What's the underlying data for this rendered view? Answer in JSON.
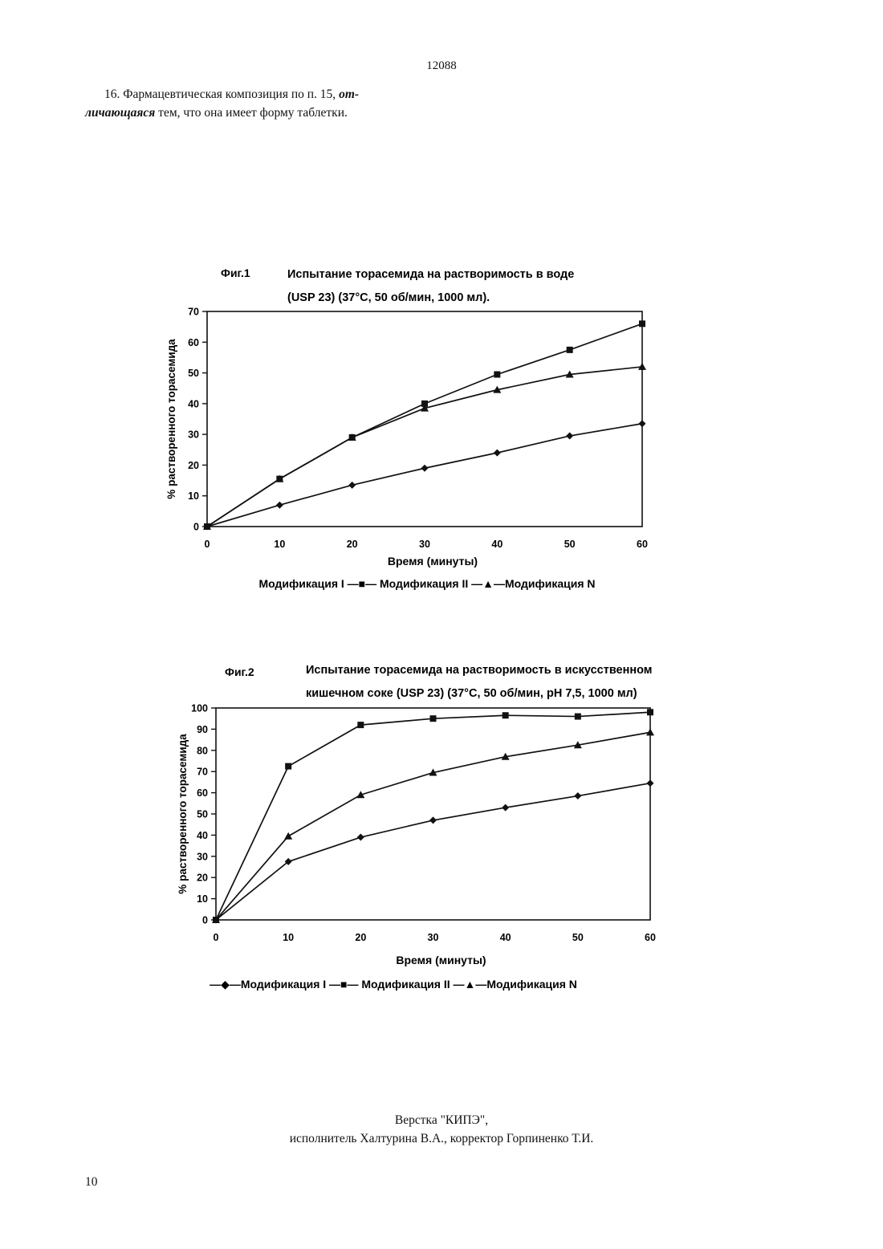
{
  "document": {
    "number": "12088",
    "claim": {
      "lead": "16. Фармацевтическая композиция по п. 15,",
      "emph1": "от-",
      "emph2": "личающаяся",
      "tail": "тем, что она имеет форму таблетки."
    },
    "footer": {
      "line1": "Верстка \"КИПЭ\",",
      "line2": "исполнитель Халтурина В.А., корректор Горпиненко Т.И."
    },
    "page_number": "10"
  },
  "chart_data": [
    {
      "type": "line",
      "fig_label": "Фиг.1",
      "title": "Испытание торасемида на растворимость в воде",
      "subtitle": "(USP 23) (37°C, 50 об/мин, 1000 мл).",
      "xlabel": "Время (минуты)",
      "ylabel": "% растворенного торасемида",
      "x": [
        0,
        10,
        20,
        30,
        40,
        50,
        60
      ],
      "xlim": [
        0,
        60
      ],
      "ylim": [
        0,
        70
      ],
      "yticks": [
        0,
        10,
        20,
        30,
        40,
        50,
        60,
        70
      ],
      "grid": false,
      "legend_position": "bottom",
      "series": [
        {
          "name": "Модификация I",
          "marker": "diamond",
          "values": [
            0,
            7,
            13.5,
            19,
            24,
            29.5,
            33.5
          ]
        },
        {
          "name": "Модификация II",
          "marker": "square",
          "values": [
            0,
            15.5,
            29,
            40,
            49.5,
            57.5,
            66
          ]
        },
        {
          "name": "Модификация N",
          "marker": "triangle",
          "values": [
            0,
            15.5,
            29,
            38.5,
            44.5,
            49.5,
            52
          ]
        }
      ],
      "legend_text": "Модификация I  —■— Модификация II —▲—Модификация N"
    },
    {
      "type": "line",
      "fig_label": "Фиг.2",
      "title": "Испытание торасемида на растворимость в искусственном",
      "subtitle": "кишечном соке (USP 23) (37°C, 50 об/мин, pH 7,5, 1000 мл)",
      "xlabel": "Время (минуты)",
      "ylabel": "% растворенного торасемида",
      "x": [
        0,
        10,
        20,
        30,
        40,
        50,
        60
      ],
      "xlim": [
        0,
        60
      ],
      "ylim": [
        0,
        100
      ],
      "yticks": [
        0,
        10,
        20,
        30,
        40,
        50,
        60,
        70,
        80,
        90,
        100
      ],
      "grid": false,
      "legend_position": "bottom",
      "series": [
        {
          "name": "Модификация I",
          "marker": "diamond",
          "values": [
            0,
            27.5,
            39,
            47,
            53,
            58.5,
            64.5
          ]
        },
        {
          "name": "Модификация II",
          "marker": "square",
          "values": [
            0,
            72.5,
            92,
            95,
            96.5,
            96,
            98
          ]
        },
        {
          "name": "Модификация N",
          "marker": "triangle",
          "values": [
            0,
            39.5,
            59,
            69.5,
            77,
            82.5,
            88.5
          ]
        }
      ],
      "legend_text": "—◆—Модификация I  —■— Модификация II —▲—Модификация N"
    }
  ]
}
